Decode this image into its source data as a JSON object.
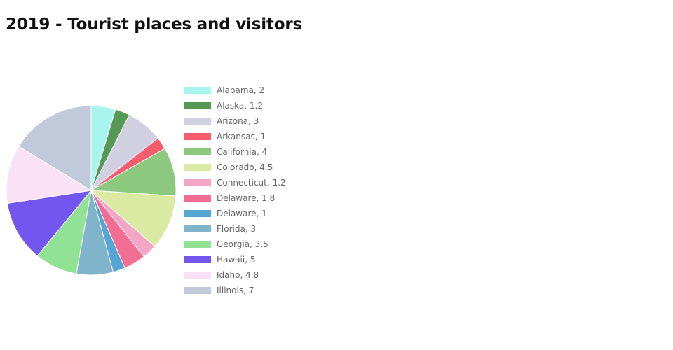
{
  "chart_data": {
    "type": "pie",
    "title": "2019 - Tourist places and visitors",
    "legend_position": "right",
    "slices": [
      {
        "label": "Alabama",
        "value": 2,
        "color": "#a8f5f0"
      },
      {
        "label": "Alaska",
        "value": 1.2,
        "color": "#559955"
      },
      {
        "label": "Arizona",
        "value": 3,
        "color": "#d0d0e2"
      },
      {
        "label": "Arkansas",
        "value": 1,
        "color": "#f65c6c"
      },
      {
        "label": "California",
        "value": 4,
        "color": "#8cc97f"
      },
      {
        "label": "Colorado",
        "value": 4.5,
        "color": "#dbeaa3"
      },
      {
        "label": "Connecticut",
        "value": 1.2,
        "color": "#f4a6c4"
      },
      {
        "label": "Delaware",
        "value": 1.8,
        "color": "#f36e93"
      },
      {
        "label": "Delaware",
        "value": 1,
        "color": "#55a6d4"
      },
      {
        "label": "Florida",
        "value": 3,
        "color": "#7fb4cb"
      },
      {
        "label": "Georgia",
        "value": 3.5,
        "color": "#92e295"
      },
      {
        "label": "Hawaii",
        "value": 5,
        "color": "#7355ef"
      },
      {
        "label": "Idaho",
        "value": 4.8,
        "color": "#fbe1f5"
      },
      {
        "label": "Illinois",
        "value": 7,
        "color": "#c1cadb"
      }
    ]
  }
}
